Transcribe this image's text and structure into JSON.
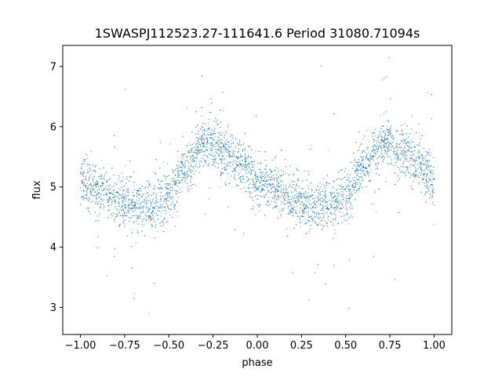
{
  "chart_data": {
    "type": "scatter",
    "title": "1SWASPJ112523.27-111641.6 Period 31080.71094s",
    "xlabel": "phase",
    "ylabel": "flux",
    "xlim": [
      -1.1,
      1.1
    ],
    "ylim": [
      2.55,
      7.35
    ],
    "xticks": [
      -1.0,
      -0.75,
      -0.5,
      -0.25,
      0.0,
      0.25,
      0.5,
      0.75,
      1.0
    ],
    "xtick_labels": [
      "−1.00",
      "−0.75",
      "−0.50",
      "−0.25",
      "0.00",
      "0.25",
      "0.50",
      "0.75",
      "1.00"
    ],
    "yticks": [
      3,
      4,
      5,
      6,
      7
    ],
    "ytick_labels": [
      "3",
      "4",
      "5",
      "6",
      "7"
    ],
    "grid": false,
    "legend": "none",
    "marker_color": "#1f77b4",
    "series": [
      {
        "x_range": [
          -1.0,
          1.0
        ],
        "trend": {
          "phase": [
            -1.0,
            -0.9,
            -0.8,
            -0.7,
            -0.6,
            -0.5,
            -0.4,
            -0.3,
            -0.25,
            -0.2,
            -0.1,
            0.0,
            0.1,
            0.2,
            0.3,
            0.4,
            0.5,
            0.6,
            0.7,
            0.75,
            0.8,
            0.9,
            1.0
          ],
          "flux": [
            5.1,
            4.95,
            4.8,
            4.68,
            4.7,
            4.85,
            5.35,
            5.7,
            5.75,
            5.6,
            5.4,
            5.1,
            4.95,
            4.8,
            4.68,
            4.7,
            4.85,
            5.35,
            5.7,
            5.75,
            5.6,
            5.4,
            5.1
          ]
        }
      }
    ]
  }
}
